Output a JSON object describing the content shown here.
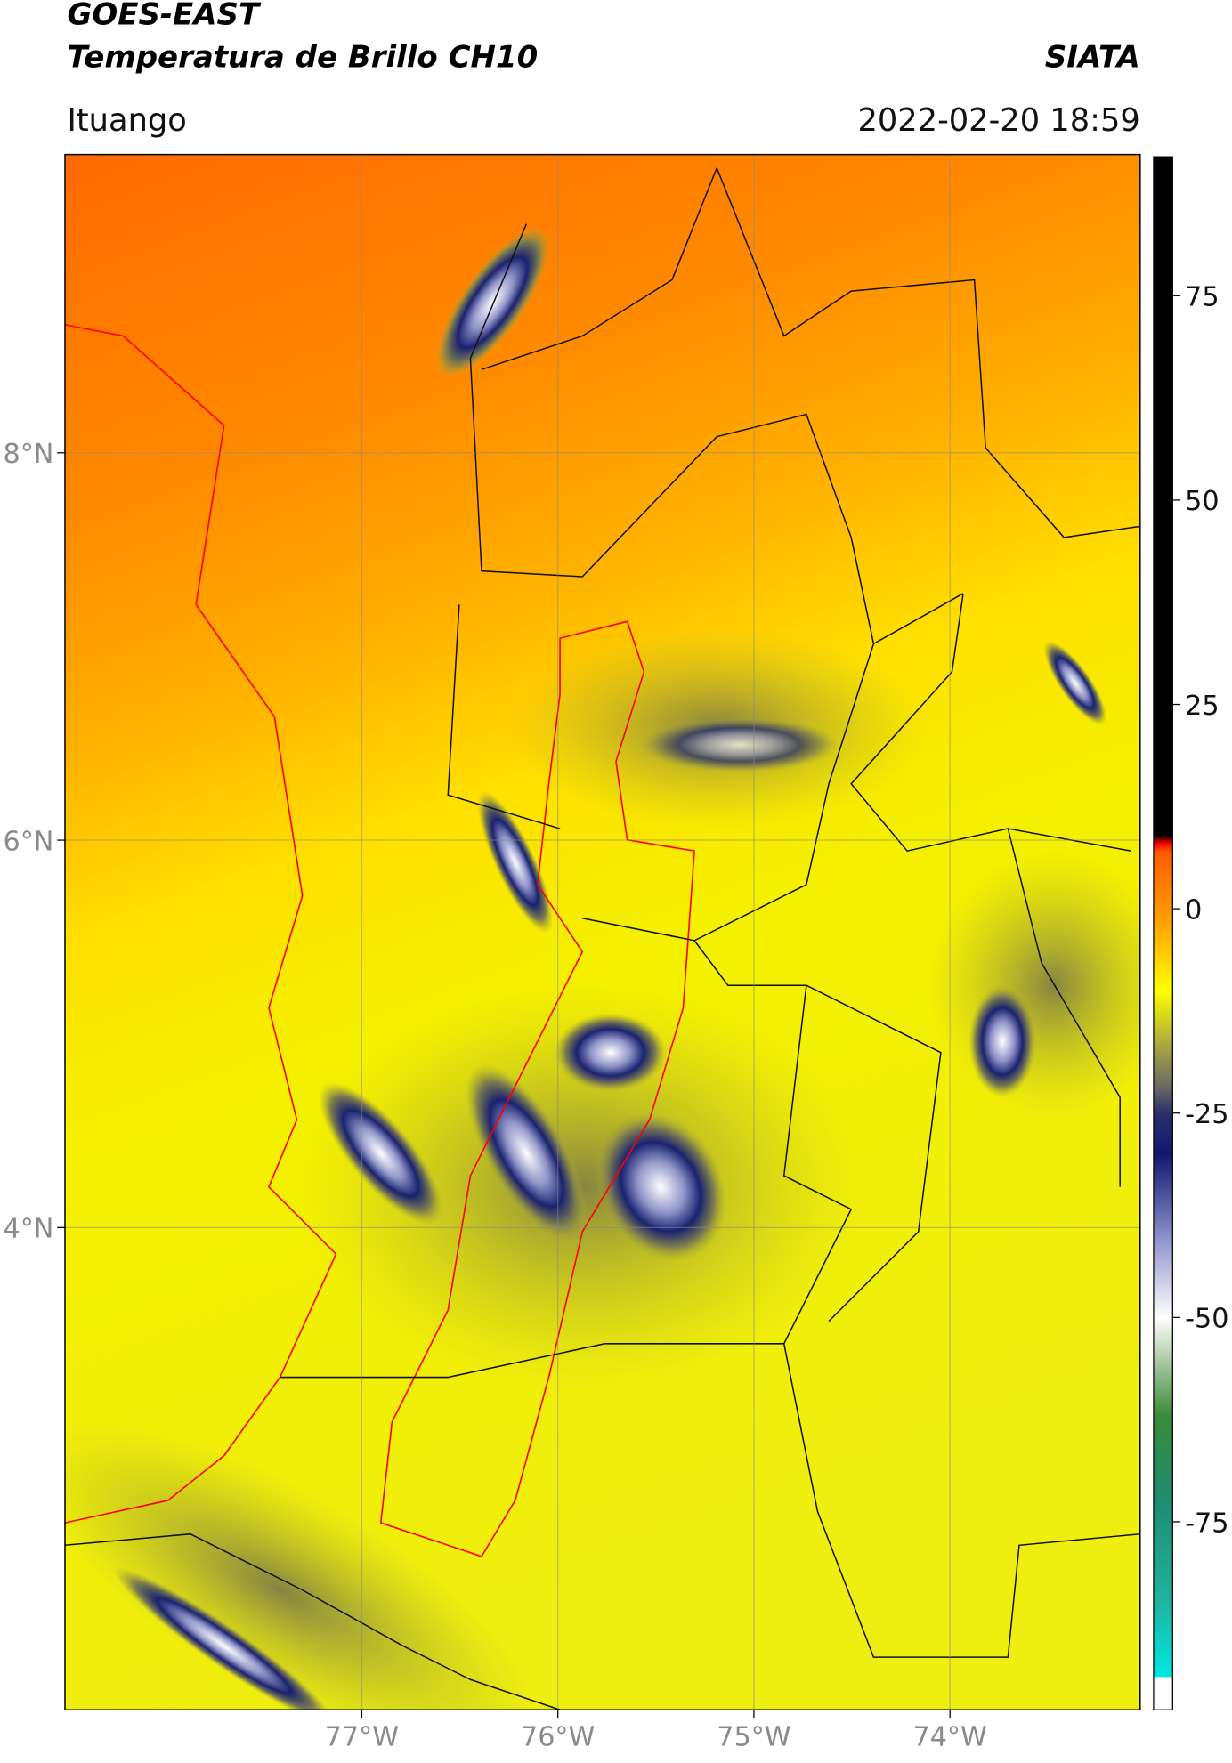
{
  "chart_data": {
    "type": "map",
    "title": "GOES-EAST",
    "subtitle": "Temperatura de Brillo CH10",
    "source": "SIATA",
    "location": "Ituango",
    "datetime": "2022-02-20 18:59",
    "xlim": [
      -78.514,
      -73.03
    ],
    "ylim": [
      1.51,
      9.54
    ],
    "xticks": [
      {
        "value": -77,
        "label": "77°W"
      },
      {
        "value": -76,
        "label": "76°W"
      },
      {
        "value": -75,
        "label": "75°W"
      },
      {
        "value": -74,
        "label": "74°W"
      }
    ],
    "yticks": [
      {
        "value": 8,
        "label": "8°N"
      },
      {
        "value": 6,
        "label": "6°N"
      },
      {
        "value": 4,
        "label": "4°N"
      }
    ],
    "grid": true,
    "colorbar": {
      "lim": [
        -98,
        92
      ],
      "ticks": [
        75,
        50,
        25,
        0,
        -25,
        -50,
        -75
      ],
      "stops": [
        {
          "value": -98,
          "color": "#ffffff"
        },
        {
          "value": -94,
          "color": "#ffffff"
        },
        {
          "value": -93.9,
          "color": "#00e8e0"
        },
        {
          "value": -85,
          "color": "#20b4a0"
        },
        {
          "value": -72,
          "color": "#1e8c6e"
        },
        {
          "value": -62,
          "color": "#3a8a3a"
        },
        {
          "value": -55,
          "color": "#b0cca8"
        },
        {
          "value": -50,
          "color": "#ffffff"
        },
        {
          "value": -40,
          "color": "#8a8ec8"
        },
        {
          "value": -30,
          "color": "#101870"
        },
        {
          "value": -25,
          "color": "#2a3068"
        },
        {
          "value": -22,
          "color": "#666666"
        },
        {
          "value": -17,
          "color": "#a4a442"
        },
        {
          "value": -10,
          "color": "#ffff00"
        },
        {
          "value": -2,
          "color": "#ffa500"
        },
        {
          "value": 7,
          "color": "#ff5a00"
        },
        {
          "value": 8,
          "color": "#ff0000"
        },
        {
          "value": 9,
          "color": "#000000"
        },
        {
          "value": 92,
          "color": "#000000"
        }
      ]
    }
  }
}
